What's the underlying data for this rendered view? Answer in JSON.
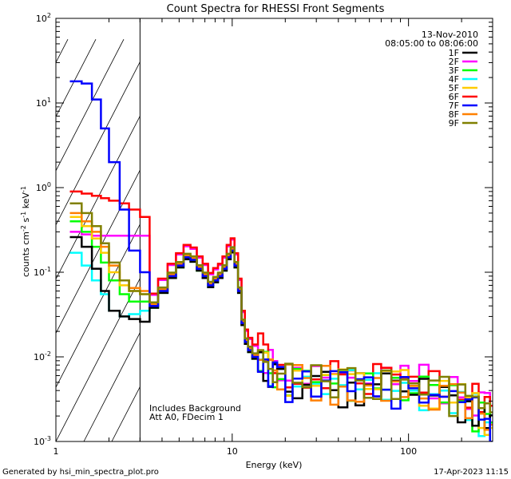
{
  "chart_data": {
    "type": "line",
    "title": "Count Spectra for RHESSI Front Segments",
    "xlabel": "Energy (keV)",
    "ylabel_base": "counts cm",
    "ylabel_exp1": "-2",
    "ylabel_mid1": " s",
    "ylabel_exp2": "-1",
    "ylabel_mid2": " keV",
    "ylabel_exp3": "-1",
    "xscale": "log",
    "yscale": "log",
    "xlim": [
      1,
      300
    ],
    "ylim": [
      0.001,
      100
    ],
    "x_ticks": [
      {
        "value": 1,
        "label": "1"
      },
      {
        "value": 10,
        "label": "10"
      },
      {
        "value": 100,
        "label": "100"
      }
    ],
    "y_ticks": [
      {
        "value": 0.001,
        "base": "10",
        "exp": "-3"
      },
      {
        "value": 0.01,
        "base": "10",
        "exp": "-2"
      },
      {
        "value": 0.1,
        "base": "10",
        "exp": "-1"
      },
      {
        "value": 1,
        "base": "10",
        "exp": "0"
      },
      {
        "value": 10,
        "base": "10",
        "exp": "1"
      },
      {
        "value": 100,
        "base": "10",
        "exp": "2"
      }
    ],
    "date": "13-Nov-2010",
    "time_range": "08:05:00 to 08:06:00",
    "hatched_region_max_kev": 3,
    "annotation_1": "Includes Background",
    "annotation_2": "Att A0, FDecim 1",
    "footer_left": "Generated by hsi_min_spectra_plot.pro",
    "footer_right": "17-Apr-2023 11:15",
    "series": [
      {
        "name": "1F",
        "color": "#000000"
      },
      {
        "name": "2F",
        "color": "#ff00ff"
      },
      {
        "name": "3F",
        "color": "#00ff00"
      },
      {
        "name": "4F",
        "color": "#00ffff"
      },
      {
        "name": "5F",
        "color": "#ffcc00"
      },
      {
        "name": "6F",
        "color": "#ff0000"
      },
      {
        "name": "7F",
        "color": "#0000ff"
      },
      {
        "name": "8F",
        "color": "#ff8000"
      },
      {
        "name": "9F",
        "color": "#808000"
      }
    ],
    "base_profile": {
      "energies_kev": [
        1.2,
        1.4,
        1.6,
        1.8,
        2.0,
        2.3,
        2.6,
        3.0,
        3.4,
        3.8,
        4.3,
        4.8,
        5.3,
        5.8,
        6.3,
        6.8,
        7.3,
        7.8,
        8.3,
        8.8,
        9.3,
        9.8,
        10.3,
        10.8,
        11.3,
        11.8,
        12.3,
        13.0,
        14.0,
        15.0,
        16.0,
        17.0,
        18.0,
        20.0,
        22.0,
        25.0,
        28.0,
        32.0,
        36.0,
        40.0,
        45.0,
        50.0,
        56.0,
        63.0,
        70.0,
        80.0,
        90.0,
        100.0,
        115.0,
        130.0,
        150.0,
        170.0,
        190.0,
        210.0,
        230.0,
        250.0,
        270.0,
        290.0
      ],
      "values": [
        0.2,
        0.14,
        0.1,
        0.07,
        0.05,
        0.04,
        0.035,
        0.03,
        0.04,
        0.06,
        0.09,
        0.12,
        0.15,
        0.14,
        0.11,
        0.09,
        0.07,
        0.08,
        0.09,
        0.11,
        0.15,
        0.18,
        0.12,
        0.06,
        0.025,
        0.015,
        0.012,
        0.01,
        0.009,
        0.008,
        0.0065,
        0.006,
        0.0055,
        0.005,
        0.0052,
        0.005,
        0.0048,
        0.005,
        0.0046,
        0.0045,
        0.0048,
        0.0046,
        0.0045,
        0.0044,
        0.0046,
        0.0044,
        0.0043,
        0.0042,
        0.004,
        0.0038,
        0.0035,
        0.0033,
        0.003,
        0.0027,
        0.0024,
        0.0021,
        0.0018,
        0.0014
      ]
    },
    "series_low_energy": {
      "1F": [
        0.26,
        0.2,
        0.11,
        0.06,
        0.035,
        0.03,
        0.028,
        0.026
      ],
      "2F": [
        0.3,
        0.28,
        0.27,
        0.27,
        0.27,
        0.27,
        0.27,
        0.27
      ],
      "3F": [
        0.4,
        0.3,
        0.2,
        0.13,
        0.08,
        0.055,
        0.045,
        0.045
      ],
      "4F": [
        0.17,
        0.12,
        0.08,
        0.055,
        0.035,
        0.03,
        0.032,
        0.035
      ],
      "5F": [
        0.45,
        0.35,
        0.25,
        0.17,
        0.1,
        0.07,
        0.06,
        0.055
      ],
      "6F": [
        0.9,
        0.85,
        0.8,
        0.75,
        0.7,
        0.65,
        0.55,
        0.45
      ],
      "7F": [
        18.0,
        17.0,
        11.0,
        5.0,
        2.0,
        0.55,
        0.18,
        0.1
      ],
      "8F": [
        0.5,
        0.4,
        0.3,
        0.2,
        0.12,
        0.08,
        0.065,
        0.06
      ],
      "9F": [
        0.65,
        0.5,
        0.35,
        0.22,
        0.13,
        0.08,
        0.06,
        0.055
      ]
    },
    "series_scale": {
      "1F": 0.95,
      "2F": 1.35,
      "3F": 0.95,
      "4F": 1.0,
      "5F": 1.05,
      "6F": 1.4,
      "7F": 1.0,
      "8F": 1.05,
      "9F": 1.1
    }
  }
}
